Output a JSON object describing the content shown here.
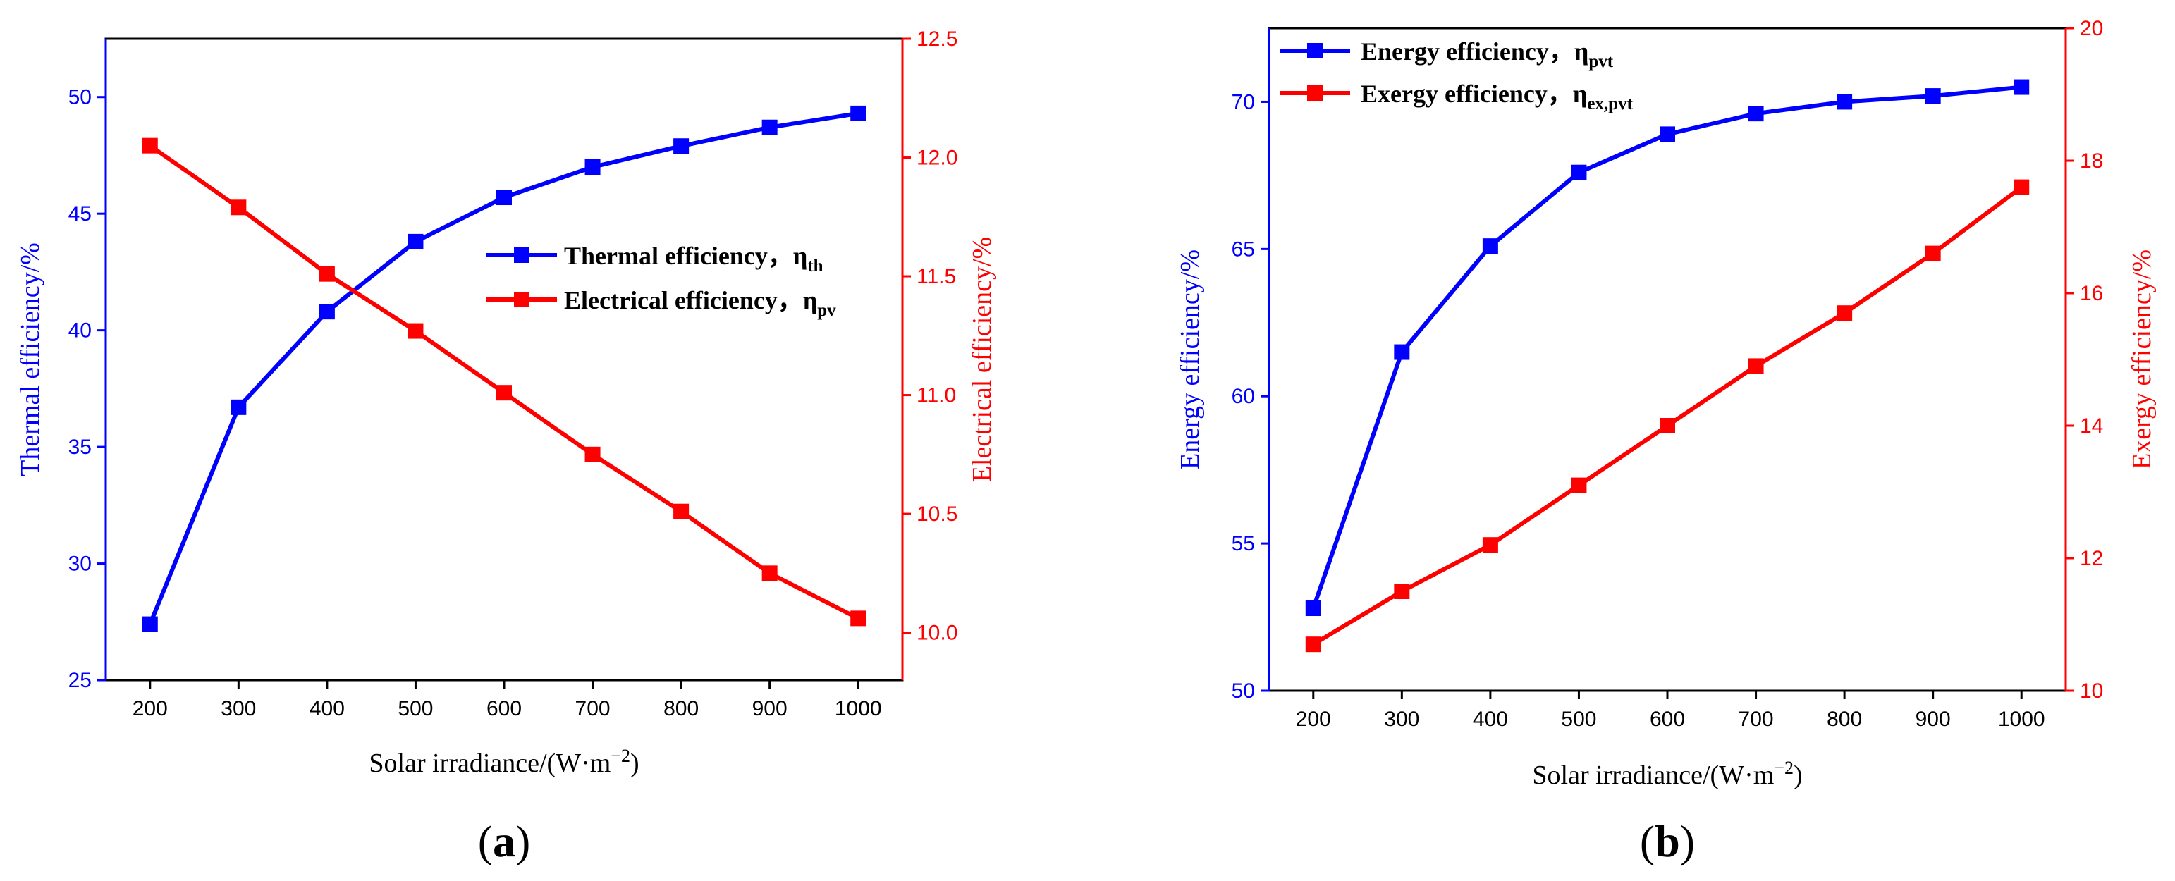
{
  "colors": {
    "left_axis": "#0000ff",
    "right_axis": "#ff0000",
    "series_blue": "#0000ff",
    "series_red": "#ff0000",
    "axis": "#000000"
  },
  "panels": [
    {
      "label_open": "(",
      "label_letter": "a",
      "label_close": ")"
    },
    {
      "label_open": "(",
      "label_letter": "b",
      "label_close": ")"
    }
  ],
  "chart_data": [
    {
      "type": "line",
      "xlabel": "Solar irradiance/(W·m",
      "xlabel_sup": "−2",
      "xlabel_end": ")",
      "ylabel": "Thermal efficiency/%",
      "y2label": "Electrical efficiency/%",
      "x": [
        200,
        300,
        400,
        500,
        600,
        700,
        800,
        900,
        1000
      ],
      "x_ticks": [
        "200",
        "300",
        "400",
        "500",
        "600",
        "700",
        "800",
        "900",
        "1000"
      ],
      "xlim": [
        150,
        1050
      ],
      "ylim": [
        25,
        52.5
      ],
      "y_ticks": [
        "25",
        "30",
        "35",
        "40",
        "45",
        "50"
      ],
      "y2lim": [
        9.8,
        12.5
      ],
      "y2_ticks": [
        "10.0",
        "10.5",
        "11.0",
        "11.5",
        "12.0",
        "12.5"
      ],
      "legend_position": "center-right",
      "series": [
        {
          "name": "Thermal efficiency，η",
          "name_sub": "th",
          "axis": "left",
          "color": "#0000ff",
          "values": [
            27.4,
            36.7,
            40.8,
            43.8,
            45.7,
            47.0,
            47.9,
            48.7,
            49.3
          ]
        },
        {
          "name": "Electrical efficiency，η",
          "name_sub": "pv",
          "axis": "right",
          "color": "#ff0000",
          "values": [
            12.05,
            11.79,
            11.51,
            11.27,
            11.01,
            10.75,
            10.51,
            10.25,
            10.06
          ]
        }
      ]
    },
    {
      "type": "line",
      "xlabel": "Solar irradiance/(W·m",
      "xlabel_sup": "−2",
      "xlabel_end": ")",
      "ylabel": "Energy efficiency/%",
      "y2label": "Exergy efficiency/%",
      "x": [
        200,
        300,
        400,
        500,
        600,
        700,
        800,
        900,
        1000
      ],
      "x_ticks": [
        "200",
        "300",
        "400",
        "500",
        "600",
        "700",
        "800",
        "900",
        "1000"
      ],
      "xlim": [
        150,
        1050
      ],
      "ylim": [
        50,
        72.5
      ],
      "y_ticks": [
        "50",
        "55",
        "60",
        "65",
        "70"
      ],
      "y2lim": [
        10,
        20
      ],
      "y2_ticks": [
        "10",
        "12",
        "14",
        "16",
        "18",
        "20"
      ],
      "legend_position": "top-left",
      "series": [
        {
          "name": "Energy efficiency，η",
          "name_sub": "pvt",
          "axis": "left",
          "color": "#0000ff",
          "values": [
            52.8,
            61.5,
            65.1,
            67.6,
            68.9,
            69.6,
            70.0,
            70.2,
            70.5
          ]
        },
        {
          "name": "Exergy efficiency，η",
          "name_sub": "ex,pvt",
          "axis": "right",
          "color": "#ff0000",
          "values": [
            10.7,
            11.5,
            12.2,
            13.1,
            14.0,
            14.9,
            15.7,
            16.6,
            17.6
          ]
        }
      ]
    }
  ]
}
